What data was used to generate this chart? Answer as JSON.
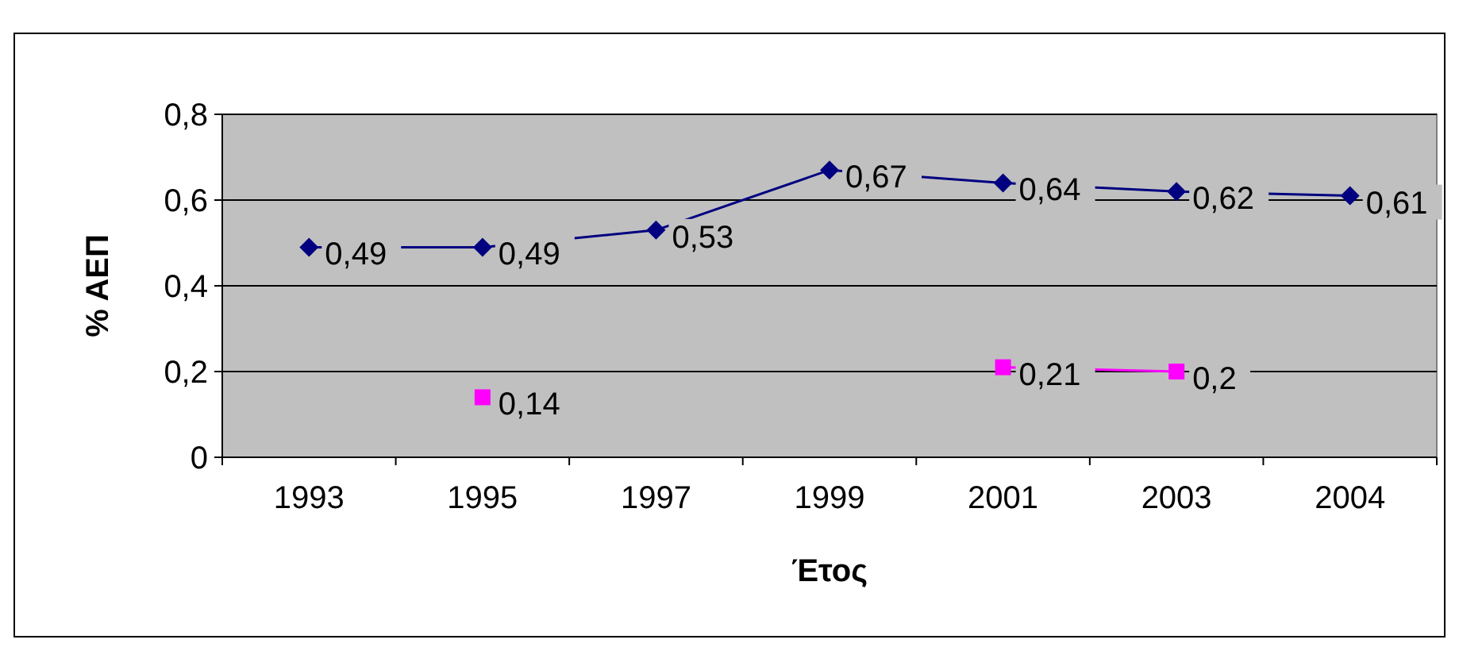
{
  "chart_data": {
    "type": "line",
    "xlabel": "Έτος",
    "ylabel": "% ΑΕΠ",
    "categories": [
      "1993",
      "1995",
      "1997",
      "1999",
      "2001",
      "2003",
      "2004"
    ],
    "series": [
      {
        "color": "#000080",
        "marker": "diamond",
        "values": [
          0.49,
          0.49,
          0.53,
          0.67,
          0.64,
          0.62,
          0.61
        ],
        "value_labels": [
          "0,49",
          "0,49",
          "0,53",
          "0,67",
          "0,64",
          "0,62",
          "0,61"
        ]
      },
      {
        "color": "#ff00ff",
        "marker": "square",
        "values": [
          null,
          0.14,
          null,
          null,
          0.21,
          0.2,
          null
        ],
        "value_labels": [
          null,
          "0,14",
          null,
          null,
          "0,21",
          "0,2",
          null
        ]
      }
    ],
    "ylim": [
      0,
      0.8
    ],
    "yticks": [
      {
        "value": 0,
        "label": "0"
      },
      {
        "value": 0.2,
        "label": "0,2"
      },
      {
        "value": 0.4,
        "label": "0,4"
      },
      {
        "value": 0.6,
        "label": "0,6"
      },
      {
        "value": 0.8,
        "label": "0,8"
      }
    ],
    "grid": "y"
  }
}
